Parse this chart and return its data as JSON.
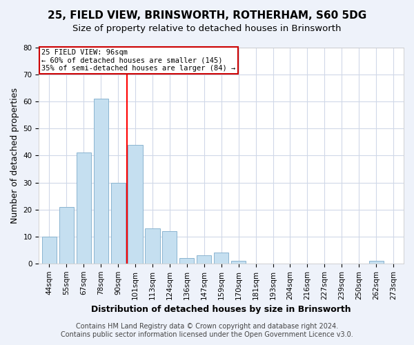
{
  "title": "25, FIELD VIEW, BRINSWORTH, ROTHERHAM, S60 5DG",
  "subtitle": "Size of property relative to detached houses in Brinsworth",
  "xlabel": "Distribution of detached houses by size in Brinsworth",
  "ylabel": "Number of detached properties",
  "bar_labels": [
    "44sqm",
    "55sqm",
    "67sqm",
    "78sqm",
    "90sqm",
    "101sqm",
    "113sqm",
    "124sqm",
    "136sqm",
    "147sqm",
    "159sqm",
    "170sqm",
    "181sqm",
    "193sqm",
    "204sqm",
    "216sqm",
    "227sqm",
    "239sqm",
    "250sqm",
    "262sqm",
    "273sqm"
  ],
  "bar_values": [
    10,
    21,
    41,
    61,
    30,
    44,
    13,
    12,
    2,
    3,
    4,
    1,
    0,
    0,
    0,
    0,
    0,
    0,
    0,
    1,
    0
  ],
  "bar_color": "#c5dff0",
  "bar_edge_color": "#8ab4d0",
  "vline_x": 4.5,
  "vline_color": "red",
  "annotation_title": "25 FIELD VIEW: 96sqm",
  "annotation_line1": "← 60% of detached houses are smaller (145)",
  "annotation_line2": "35% of semi-detached houses are larger (84) →",
  "annotation_box_color": "white",
  "annotation_box_edge": "#cc0000",
  "ylim": [
    0,
    80
  ],
  "yticks": [
    0,
    10,
    20,
    30,
    40,
    50,
    60,
    70,
    80
  ],
  "footer1": "Contains HM Land Registry data © Crown copyright and database right 2024.",
  "footer2": "Contains public sector information licensed under the Open Government Licence v3.0.",
  "bg_color": "#eef2fa",
  "plot_bg_color": "#ffffff",
  "grid_color": "#d0d8e8",
  "title_fontsize": 11,
  "subtitle_fontsize": 9.5,
  "label_fontsize": 9,
  "tick_fontsize": 7.5,
  "footer_fontsize": 7
}
